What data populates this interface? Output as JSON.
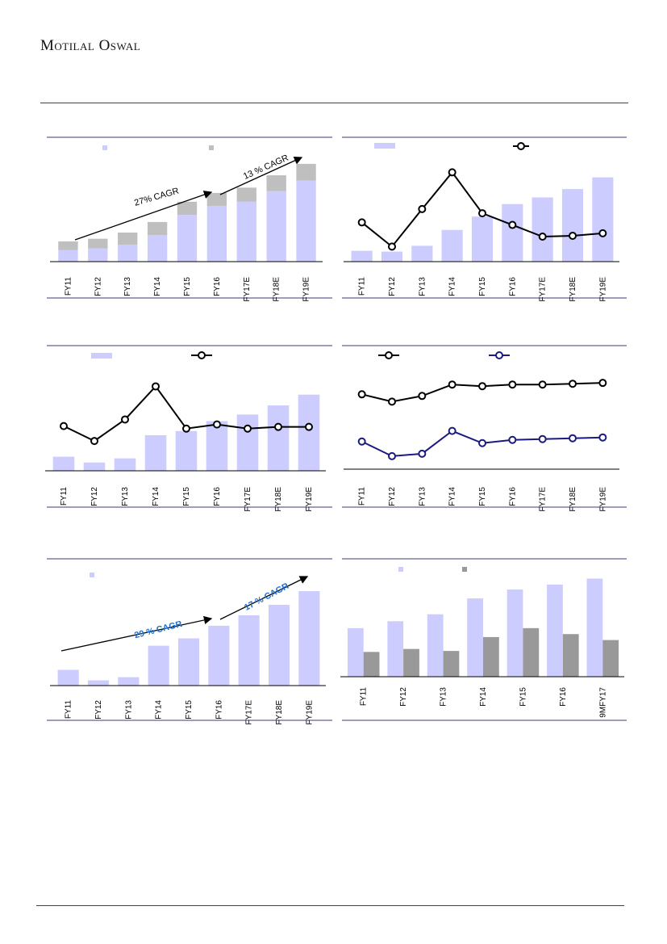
{
  "header": {
    "brand": "Motilal Oswal"
  },
  "chart_data": [
    {
      "id": "c1",
      "type": "bar",
      "stacked": true,
      "categories": [
        "FY11",
        "FY12",
        "FY13",
        "FY14",
        "FY15",
        "FY16",
        "FY17E",
        "FY18E",
        "FY19E"
      ],
      "series": [
        {
          "values": [
            13,
            15,
            19,
            30,
            53,
            63,
            68,
            80,
            92
          ],
          "color": "#ccccff"
        },
        {
          "values": [
            10,
            11,
            14,
            15,
            15,
            15,
            16,
            18,
            19
          ],
          "color": "#bfbfbf"
        }
      ],
      "annotations": [
        {
          "text": "27% CAGR",
          "color": "#000000"
        },
        {
          "text": "13 % CAGR",
          "color": "#000000"
        }
      ],
      "ylim": [
        0,
        110
      ]
    },
    {
      "id": "c2",
      "type": "bar+line",
      "categories": [
        "FY11",
        "FY12",
        "FY13",
        "FY14",
        "FY15",
        "FY16",
        "FY17E",
        "FY18E",
        "FY19E"
      ],
      "series": [
        {
          "type": "bar",
          "values": [
            13,
            12,
            19,
            38,
            54,
            69,
            77,
            87,
            101
          ],
          "color": "#ccccff"
        },
        {
          "type": "line",
          "values": [
            47,
            18,
            63,
            107,
            58,
            44,
            30,
            31,
            34
          ],
          "color": "#000000"
        }
      ],
      "ylim": [
        0,
        120
      ]
    },
    {
      "id": "c3",
      "type": "bar+line",
      "categories": [
        "FY11",
        "FY12",
        "FY13",
        "FY14",
        "FY15",
        "FY16",
        "FY17E",
        "FY18E",
        "FY19E"
      ],
      "series": [
        {
          "type": "bar",
          "values": [
            17,
            10,
            15,
            43,
            48,
            60,
            68,
            79,
            92
          ],
          "color": "#ccccff"
        },
        {
          "type": "line",
          "values": [
            54,
            36,
            62,
            102,
            51,
            56,
            51,
            53,
            53
          ],
          "color": "#000000"
        }
      ],
      "ylim": [
        0,
        120
      ]
    },
    {
      "id": "c4",
      "type": "line",
      "categories": [
        "FY11",
        "FY12",
        "FY13",
        "FY14",
        "FY15",
        "FY16",
        "FY17E",
        "FY18E",
        "FY19E"
      ],
      "series": [
        {
          "values": [
            92,
            83,
            90,
            104,
            102,
            104,
            104,
            105,
            106
          ],
          "color": "#000000"
        },
        {
          "values": [
            34,
            16,
            19,
            47,
            32,
            36,
            37,
            38,
            39
          ],
          "color": "#1a1a80"
        }
      ],
      "ylim": [
        0,
        130
      ]
    },
    {
      "id": "c5",
      "type": "bar",
      "categories": [
        "FY11",
        "FY12",
        "FY13",
        "FY14",
        "FY15",
        "FY16",
        "FY17E",
        "FY18E",
        "FY19E"
      ],
      "series": [
        {
          "values": [
            15,
            5,
            8,
            38,
            45,
            57,
            67,
            77,
            90
          ],
          "color": "#ccccff"
        }
      ],
      "annotations": [
        {
          "text": "29 % CAGR",
          "color": "#1a6fd8"
        },
        {
          "text": "17 % CAGR",
          "color": "#1a6fd8"
        }
      ],
      "ylim": [
        0,
        100
      ]
    },
    {
      "id": "c6",
      "type": "bar",
      "grouped": true,
      "categories": [
        "FY11",
        "FY12",
        "FY13",
        "FY14",
        "FY15",
        "FY16",
        "9MFY17"
      ],
      "series": [
        {
          "values": [
            49,
            56,
            63,
            79,
            88,
            93,
            99
          ],
          "color": "#ccccff"
        },
        {
          "values": [
            25,
            28,
            26,
            40,
            49,
            43,
            37
          ],
          "color": "#999999"
        }
      ],
      "ylim": [
        0,
        110
      ]
    }
  ]
}
